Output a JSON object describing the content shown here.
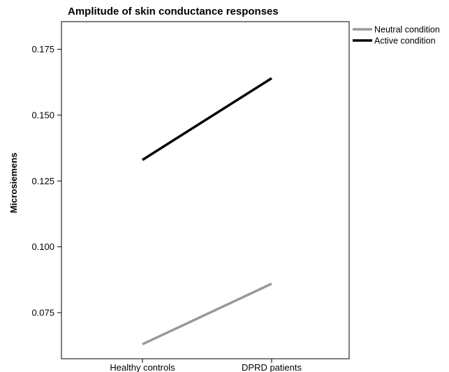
{
  "chart_data": {
    "type": "line",
    "title": "Amplitude of skin conductance responses",
    "xlabel": "",
    "ylabel": "Microsiemens",
    "categories": [
      "Healthy controls",
      "DPRD patients"
    ],
    "ylim": [
      0.0575,
      0.1855
    ],
    "yticks": [
      0.075,
      0.1,
      0.125,
      0.15,
      0.175
    ],
    "ytick_labels": [
      "0.075",
      "0.100",
      "0.125",
      "0.150",
      "0.175"
    ],
    "grid": false,
    "legend_position": "top-right, outside plot",
    "series": [
      {
        "name": "Neutral condition",
        "values": [
          0.063,
          0.086
        ],
        "color": "#999999"
      },
      {
        "name": "Active condition",
        "values": [
          0.133,
          0.164
        ],
        "color": "#000000"
      }
    ]
  }
}
